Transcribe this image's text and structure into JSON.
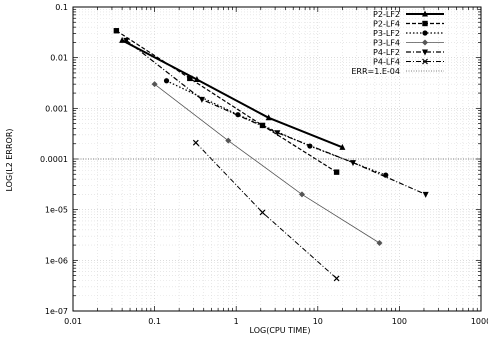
{
  "chart_data": {
    "type": "line",
    "x_scale": "log",
    "y_scale": "log",
    "xlim": [
      0.01,
      1000
    ],
    "ylim": [
      1e-07,
      0.1
    ],
    "xlabel": "LOG(CPU TIME)",
    "ylabel": "LOG(L2 ERROR)",
    "grid": true,
    "legend_position": "top-right",
    "x_ticks": [
      {
        "value": 0.01,
        "label": "0.01"
      },
      {
        "value": 0.1,
        "label": "0.1"
      },
      {
        "value": 1,
        "label": "1"
      },
      {
        "value": 10,
        "label": "10"
      },
      {
        "value": 100,
        "label": "100"
      },
      {
        "value": 1000,
        "label": "1000"
      }
    ],
    "y_ticks": [
      {
        "value": 1e-07,
        "label": "1e-07"
      },
      {
        "value": 1e-06,
        "label": "1e-06"
      },
      {
        "value": 1e-05,
        "label": "1e-05"
      },
      {
        "value": 0.0001,
        "label": "0.0001"
      },
      {
        "value": 0.001,
        "label": "0.001"
      },
      {
        "value": 0.01,
        "label": "0.01"
      },
      {
        "value": 0.1,
        "label": "0.1"
      }
    ],
    "series": [
      {
        "name": "P2-LF2",
        "color": "#000000",
        "dash": "",
        "width": 2,
        "marker": "triangle-up",
        "points": [
          [
            0.04,
            0.022
          ],
          [
            0.33,
            0.0037
          ],
          [
            2.5,
            0.00065
          ],
          [
            20,
            0.00017
          ]
        ]
      },
      {
        "name": "P2-LF4",
        "color": "#000000",
        "dash": "4 2",
        "width": 1.2,
        "marker": "square",
        "points": [
          [
            0.034,
            0.034
          ],
          [
            0.27,
            0.0039
          ],
          [
            2.1,
            0.00046
          ],
          [
            17,
            5.5e-05
          ]
        ]
      },
      {
        "name": "P3-LF2",
        "color": "#000000",
        "dash": "1.5 2",
        "width": 1.2,
        "marker": "circle",
        "points": [
          [
            0.14,
            0.0035
          ],
          [
            1.05,
            0.00075
          ],
          [
            8,
            0.00018
          ],
          [
            68,
            4.8e-05
          ]
        ]
      },
      {
        "name": "P3-LF4",
        "color": "#555555",
        "dash": "",
        "width": 0.8,
        "marker": "diamond",
        "points": [
          [
            0.1,
            0.003
          ],
          [
            0.8,
            0.00023
          ],
          [
            6.4,
            2e-05
          ],
          [
            57,
            2.2e-06
          ]
        ]
      },
      {
        "name": "P4-LF2",
        "color": "#000000",
        "dash": "5 2 1 2",
        "width": 1.2,
        "marker": "triangle-down",
        "points": [
          [
            0.045,
            0.022
          ],
          [
            0.38,
            0.0015
          ],
          [
            3.2,
            0.00033
          ],
          [
            27,
            8.5e-05
          ],
          [
            210,
            2e-05
          ]
        ]
      },
      {
        "name": "P4-LF4",
        "color": "#000000",
        "dash": "5 2 1 2",
        "width": 1,
        "marker": "x",
        "points": [
          [
            0.32,
            0.00021
          ],
          [
            2.1,
            8.8e-06
          ],
          [
            17,
            4.4e-07
          ]
        ]
      },
      {
        "name": "ERR=1.E-04",
        "color": "#555555",
        "dash": "1 1.5",
        "width": 0.8,
        "marker": "none",
        "points": [
          [
            0.01,
            0.0001
          ],
          [
            1000,
            0.0001
          ]
        ]
      }
    ]
  }
}
